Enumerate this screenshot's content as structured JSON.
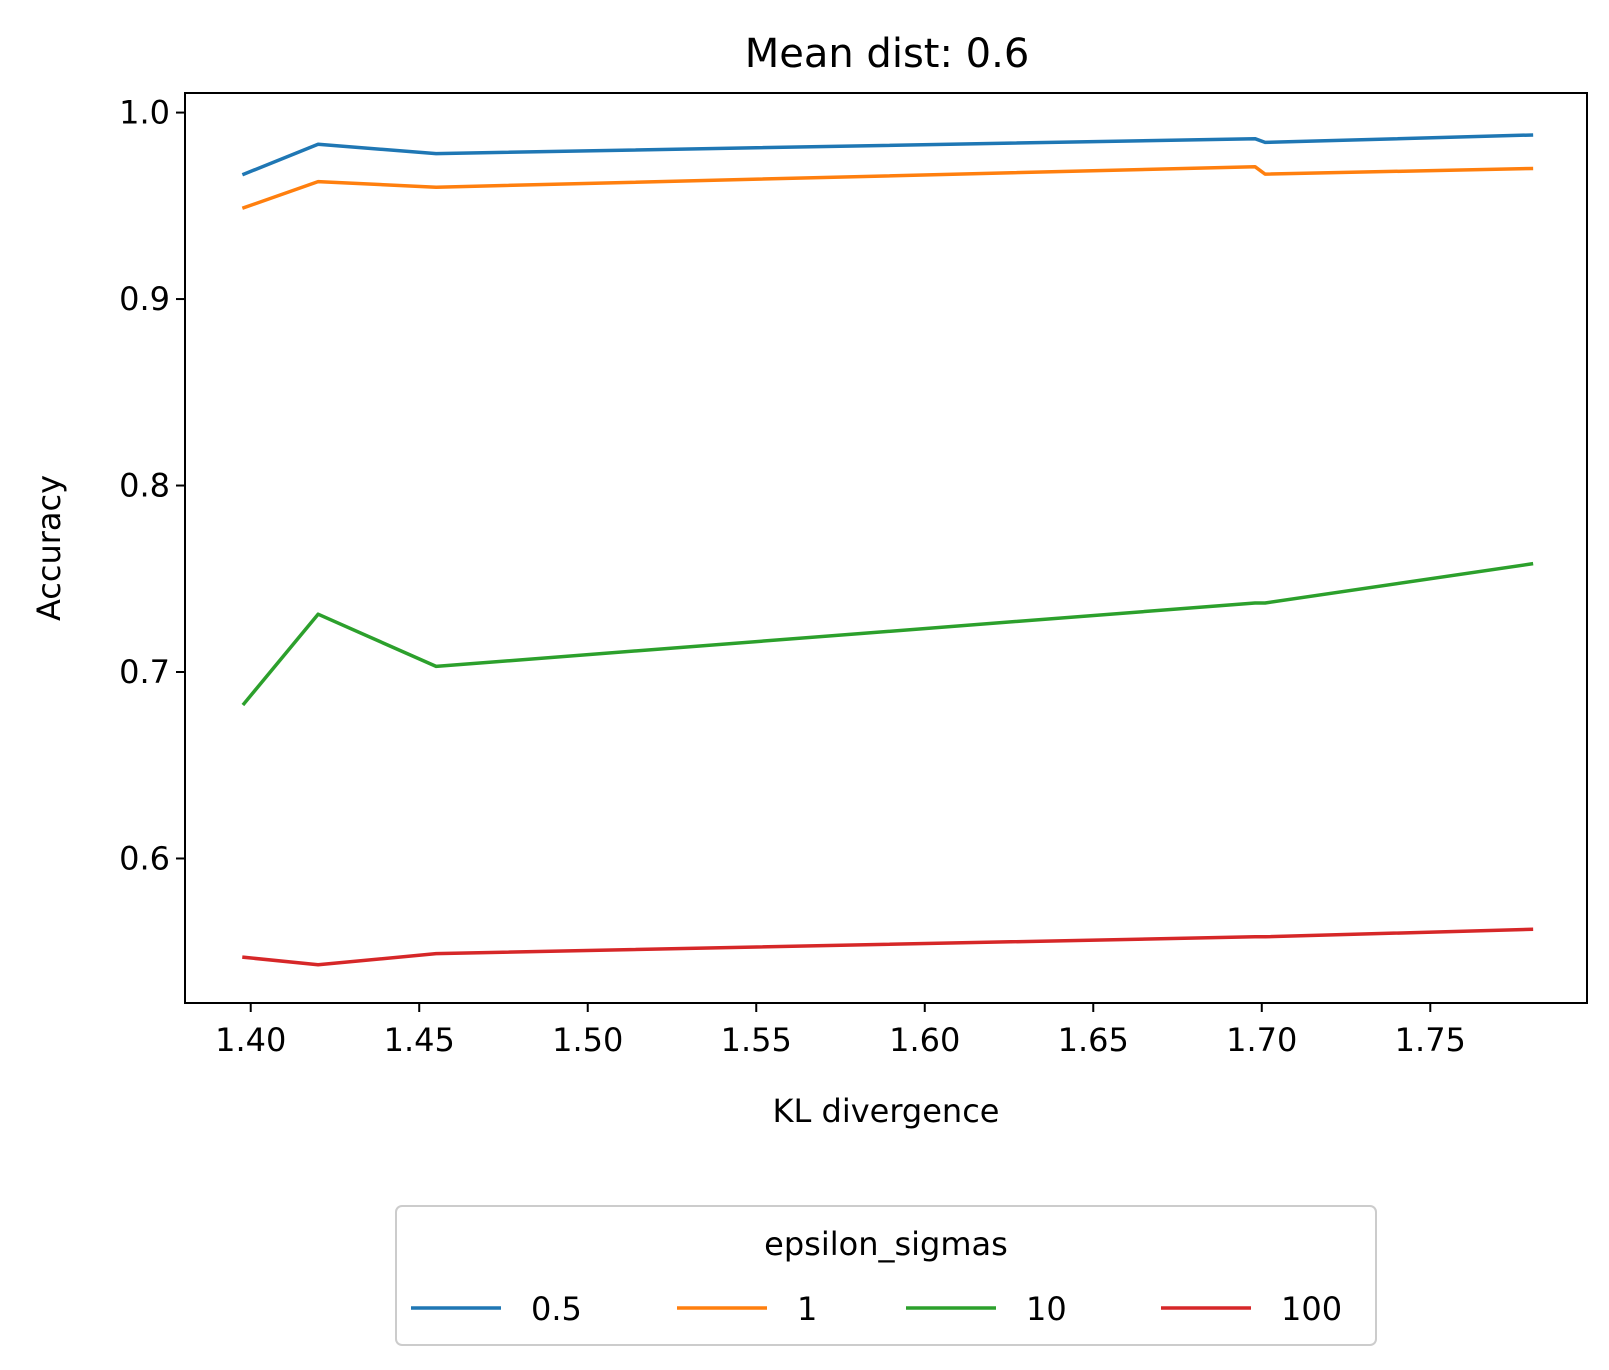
{
  "chart_data": {
    "type": "line",
    "title": "Mean dist: 0.6",
    "xlabel": "KL divergence",
    "ylabel": "Accuracy",
    "xlim": [
      1.3805,
      1.7965
    ],
    "ylim": [
      0.5225,
      1.0105
    ],
    "x_ticks": [
      "1.40",
      "1.45",
      "1.50",
      "1.55",
      "1.60",
      "1.65",
      "1.70",
      "1.75"
    ],
    "y_ticks": [
      "0.6",
      "0.7",
      "0.8",
      "0.9",
      "1.0"
    ],
    "x": [
      1.398,
      1.42,
      1.455,
      1.698,
      1.701,
      1.78
    ],
    "series": [
      {
        "name": "0.5",
        "color": "#1f77b4",
        "values": [
          0.967,
          0.983,
          0.978,
          0.986,
          0.984,
          0.988
        ]
      },
      {
        "name": "1",
        "color": "#ff7f0e",
        "values": [
          0.949,
          0.963,
          0.96,
          0.971,
          0.967,
          0.97
        ]
      },
      {
        "name": "10",
        "color": "#2ca02c",
        "values": [
          0.683,
          0.731,
          0.703,
          0.737,
          0.737,
          0.758
        ]
      },
      {
        "name": "100",
        "color": "#d62728",
        "values": [
          0.547,
          0.543,
          0.549,
          0.558,
          0.558,
          0.562
        ]
      }
    ],
    "legend": {
      "title": "epsilon_sigmas",
      "placement": "bottom-center"
    },
    "grid": false
  }
}
